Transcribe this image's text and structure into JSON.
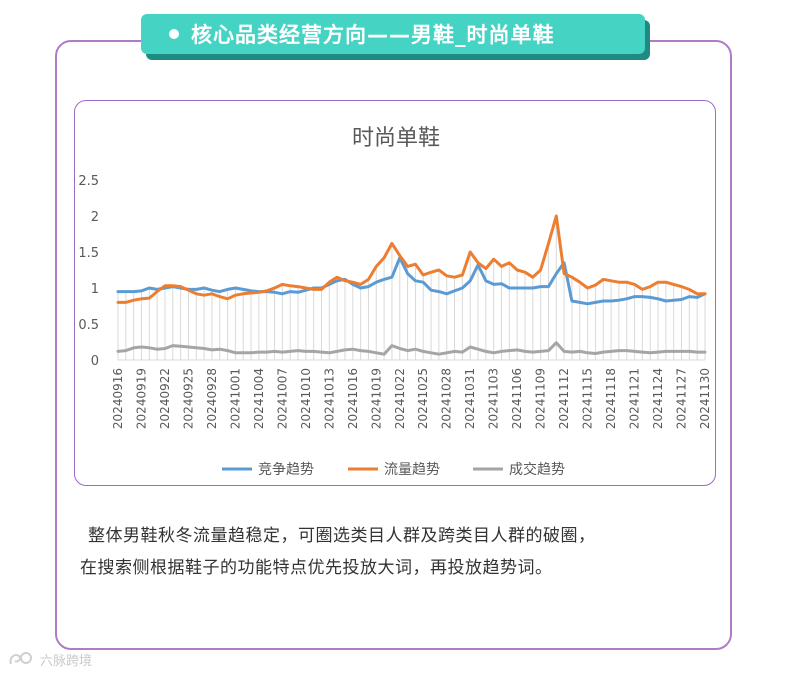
{
  "banner": {
    "title": "核心品类经营方向——男鞋_时尚单鞋"
  },
  "chart_data": {
    "type": "line",
    "title": "时尚单鞋",
    "ylim": [
      0,
      2.5
    ],
    "yticks": [
      "0",
      "0.5",
      "1",
      "1.5",
      "2",
      "2.5"
    ],
    "grid": "vertical light gray drop lines",
    "legend_position": "bottom",
    "x": [
      "20240916",
      "20240917",
      "20240918",
      "20240919",
      "20240920",
      "20240921",
      "20240922",
      "20240923",
      "20240924",
      "20240925",
      "20240926",
      "20240927",
      "20240928",
      "20240929",
      "20240930",
      "20241001",
      "20241002",
      "20241003",
      "20241004",
      "20241005",
      "20241006",
      "20241007",
      "20241008",
      "20241009",
      "20241010",
      "20241011",
      "20241012",
      "20241013",
      "20241014",
      "20241015",
      "20241016",
      "20241017",
      "20241018",
      "20241019",
      "20241020",
      "20241021",
      "20241022",
      "20241023",
      "20241024",
      "20241025",
      "20241026",
      "20241027",
      "20241028",
      "20241029",
      "20241030",
      "20241031",
      "20241101",
      "20241102",
      "20241103",
      "20241104",
      "20241105",
      "20241106",
      "20241107",
      "20241108",
      "20241109",
      "20241110",
      "20241111",
      "20241112",
      "20241113",
      "20241114",
      "20241115",
      "20241116",
      "20241117",
      "20241118",
      "20241119",
      "20241120",
      "20241121",
      "20241122",
      "20241123",
      "20241124",
      "20241125",
      "20241126",
      "20241127",
      "20241128",
      "20241129",
      "20241130"
    ],
    "x_tick_labels": [
      "20240916",
      "20240919",
      "20240922",
      "20240925",
      "20240928",
      "20241001",
      "20241004",
      "20241007",
      "20241010",
      "20241013",
      "20241016",
      "20241019",
      "20241022",
      "20241025",
      "20241028",
      "20241031",
      "20241103",
      "20241106",
      "20241109",
      "20241112",
      "20241115",
      "20241118",
      "20241121",
      "20241124",
      "20241127",
      "20241130"
    ],
    "series": [
      {
        "name": "竞争趋势",
        "color": "#5b9bd5",
        "values": [
          0.95,
          0.95,
          0.95,
          0.96,
          1.0,
          0.98,
          1.0,
          1.02,
          1.0,
          0.98,
          0.98,
          1.0,
          0.97,
          0.95,
          0.98,
          1.0,
          0.98,
          0.96,
          0.95,
          0.95,
          0.94,
          0.92,
          0.95,
          0.94,
          0.97,
          1.0,
          1.0,
          1.05,
          1.1,
          1.12,
          1.05,
          1.0,
          1.02,
          1.08,
          1.12,
          1.15,
          1.42,
          1.2,
          1.1,
          1.08,
          0.97,
          0.95,
          0.92,
          0.96,
          1.0,
          1.1,
          1.32,
          1.1,
          1.05,
          1.06,
          1.0,
          1.0,
          1.0,
          1.0,
          1.02,
          1.02,
          1.2,
          1.35,
          0.82,
          0.8,
          0.78,
          0.8,
          0.82,
          0.82,
          0.83,
          0.85,
          0.88,
          0.88,
          0.87,
          0.85,
          0.82,
          0.83,
          0.84,
          0.88,
          0.87,
          0.92
        ]
      },
      {
        "name": "流量趋势",
        "color": "#ed7d31",
        "values": [
          0.8,
          0.8,
          0.83,
          0.85,
          0.86,
          0.95,
          1.03,
          1.03,
          1.02,
          0.97,
          0.92,
          0.9,
          0.92,
          0.88,
          0.85,
          0.9,
          0.92,
          0.93,
          0.94,
          0.96,
          1.0,
          1.05,
          1.03,
          1.02,
          1.0,
          0.98,
          0.98,
          1.08,
          1.15,
          1.1,
          1.08,
          1.05,
          1.12,
          1.3,
          1.42,
          1.62,
          1.45,
          1.3,
          1.33,
          1.18,
          1.22,
          1.25,
          1.17,
          1.15,
          1.18,
          1.5,
          1.35,
          1.27,
          1.4,
          1.3,
          1.35,
          1.25,
          1.22,
          1.15,
          1.25,
          1.62,
          2.0,
          1.2,
          1.15,
          1.08,
          1.0,
          1.04,
          1.12,
          1.1,
          1.08,
          1.08,
          1.05,
          0.98,
          1.02,
          1.08,
          1.08,
          1.05,
          1.02,
          0.98,
          0.92,
          0.92
        ]
      },
      {
        "name": "成交趋势",
        "color": "#a5a5a5",
        "values": [
          0.12,
          0.13,
          0.17,
          0.18,
          0.17,
          0.15,
          0.16,
          0.2,
          0.19,
          0.18,
          0.17,
          0.16,
          0.14,
          0.15,
          0.13,
          0.1,
          0.1,
          0.1,
          0.11,
          0.11,
          0.12,
          0.11,
          0.12,
          0.13,
          0.12,
          0.12,
          0.11,
          0.1,
          0.12,
          0.14,
          0.15,
          0.13,
          0.12,
          0.1,
          0.08,
          0.2,
          0.16,
          0.13,
          0.15,
          0.12,
          0.1,
          0.08,
          0.1,
          0.12,
          0.11,
          0.18,
          0.15,
          0.12,
          0.1,
          0.12,
          0.13,
          0.14,
          0.12,
          0.11,
          0.12,
          0.13,
          0.24,
          0.12,
          0.11,
          0.12,
          0.1,
          0.09,
          0.11,
          0.12,
          0.13,
          0.13,
          0.12,
          0.11,
          0.1,
          0.11,
          0.12,
          0.12,
          0.12,
          0.12,
          0.11,
          0.11
        ]
      }
    ]
  },
  "body": {
    "line1": "整体男鞋秋冬流量趋稳定，可圈选类目人群及跨类目人群的破圈，",
    "line2": "在搜索侧根据鞋子的功能特点优先投放大词，再投放趋势词。"
  },
  "watermark": {
    "text": "六脉跨境"
  }
}
